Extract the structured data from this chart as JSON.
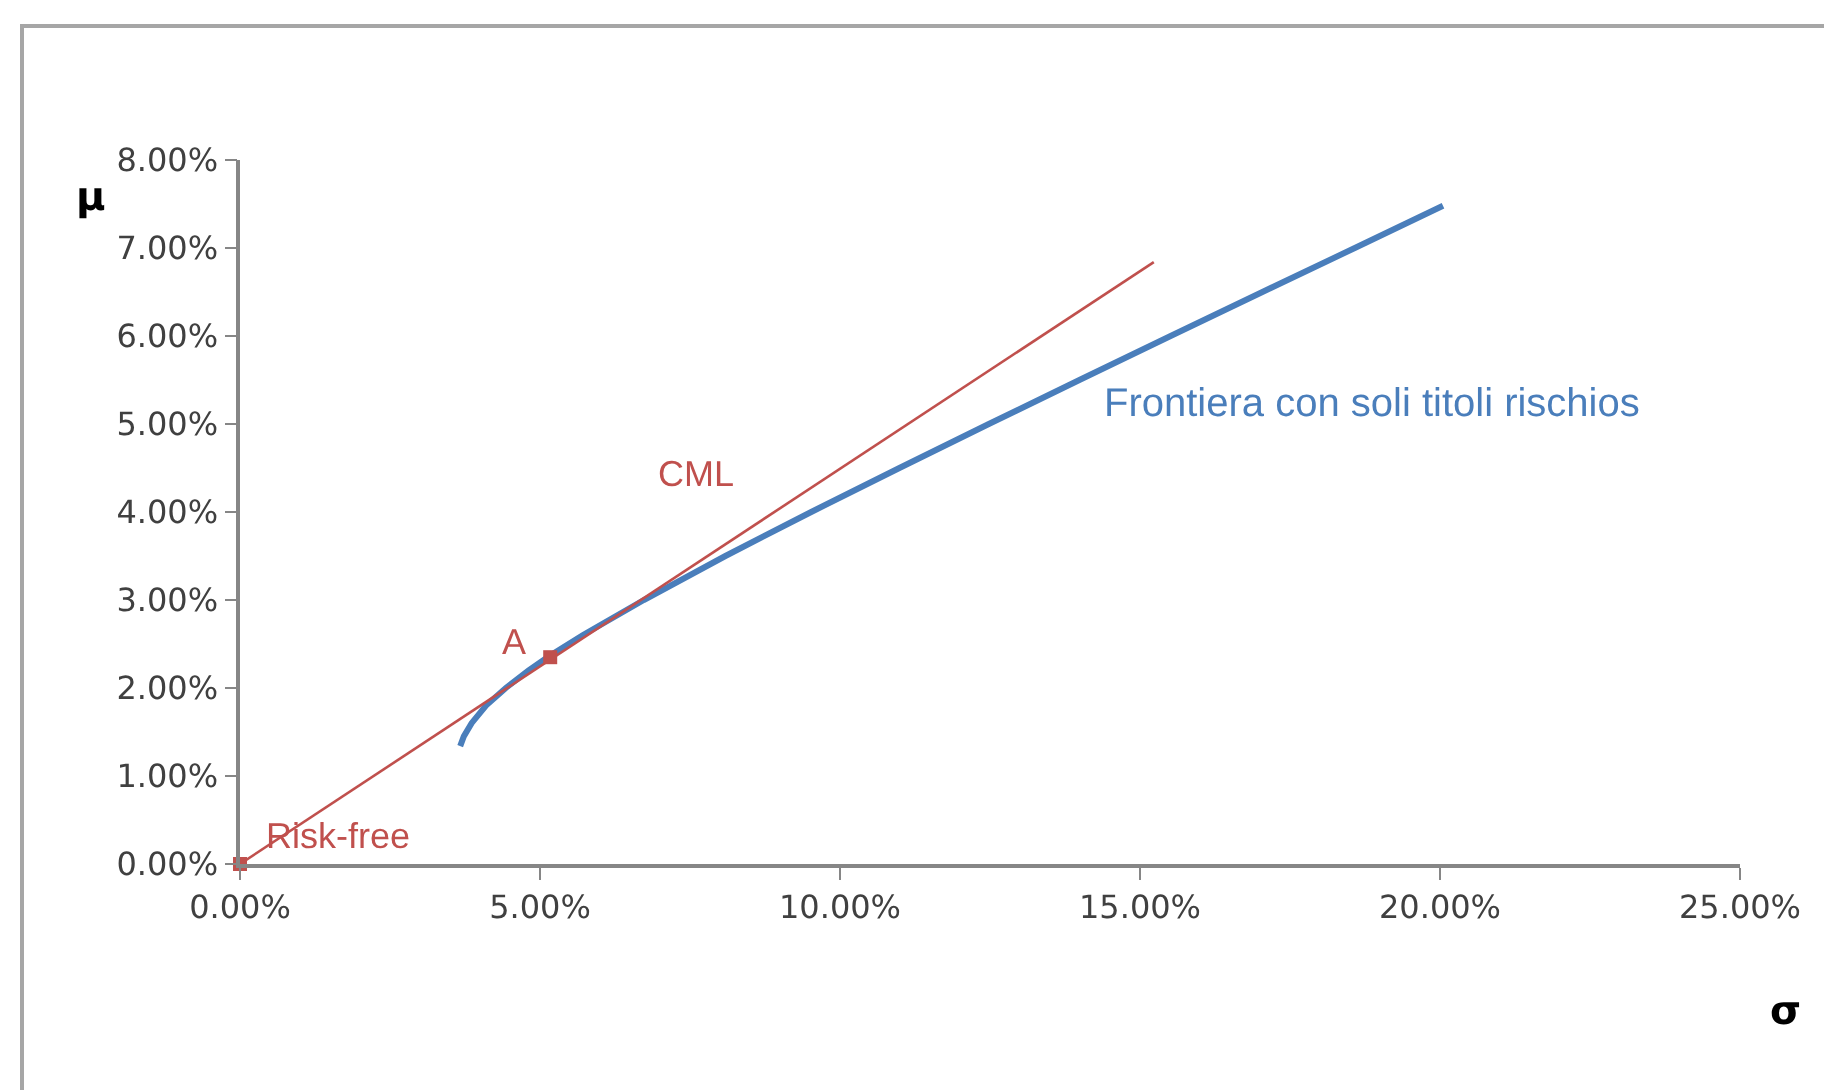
{
  "chart_data": {
    "type": "line",
    "xlabel": "σ",
    "ylabel": "μ",
    "xlim": [
      0,
      25
    ],
    "ylim": [
      0,
      8
    ],
    "xticks": [
      {
        "value": 0,
        "label": "0.00%"
      },
      {
        "value": 5,
        "label": "5.00%"
      },
      {
        "value": 10,
        "label": "10.00%"
      },
      {
        "value": 15,
        "label": "15.00%"
      },
      {
        "value": 20,
        "label": "20.00%"
      },
      {
        "value": 25,
        "label": "25.00%"
      }
    ],
    "yticks": [
      {
        "value": 0,
        "label": "0.00%"
      },
      {
        "value": 1,
        "label": "1.00%"
      },
      {
        "value": 2,
        "label": "2.00%"
      },
      {
        "value": 3,
        "label": "3.00%"
      },
      {
        "value": 4,
        "label": "4.00%"
      },
      {
        "value": 5,
        "label": "5.00%"
      },
      {
        "value": 6,
        "label": "6.00%"
      },
      {
        "value": 7,
        "label": "7.00%"
      },
      {
        "value": 8,
        "label": "8.00%"
      }
    ],
    "series": [
      {
        "name": "Frontiera con soli titoli rischios",
        "color": "#4a7ebb",
        "x": [
          3.67,
          3.73,
          3.86,
          4.1,
          4.43,
          4.81,
          5.15,
          5.71,
          6.73,
          8.09,
          9.52,
          10.99,
          12.48,
          13.99,
          15.51,
          17.04,
          18.58,
          20.05
        ],
        "values": [
          1.34,
          1.45,
          1.6,
          1.8,
          2.0,
          2.2,
          2.36,
          2.6,
          3.0,
          3.5,
          4.0,
          4.5,
          5.0,
          5.5,
          6.0,
          6.5,
          7.0,
          7.48
        ]
      },
      {
        "name": "CML",
        "color": "#c0504d",
        "x": [
          0,
          15.23
        ],
        "values": [
          0,
          6.84
        ]
      },
      {
        "type": "scatter",
        "marker": "square",
        "color": "#c0504d",
        "x": [
          0,
          5.17
        ],
        "values": [
          0,
          2.35
        ]
      }
    ],
    "annotations": [
      {
        "text": "Risk-free",
        "x": 0,
        "y": 0
      },
      {
        "text": "A",
        "x": 5.17,
        "y": 2.35
      }
    ]
  }
}
